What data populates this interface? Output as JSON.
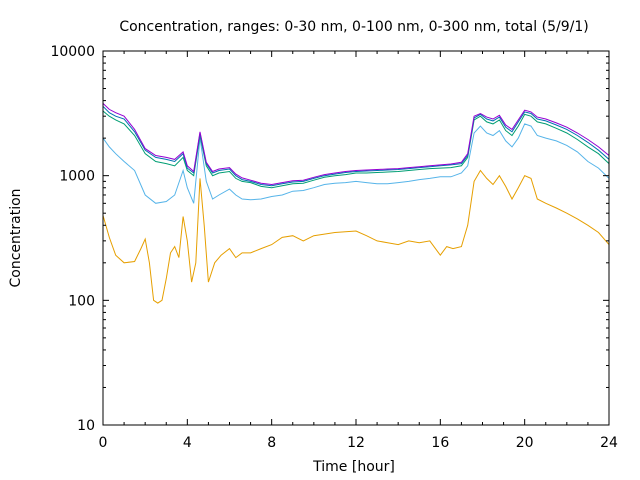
{
  "chart_data": {
    "type": "line",
    "title": "Concentration, ranges: 0-30 nm, 0-100 nm, 0-300 nm, total (5/9/1)",
    "xlabel": "Time [hour]",
    "ylabel": "Concentration",
    "xlim": [
      0,
      24
    ],
    "ylim": [
      10,
      10000
    ],
    "yscale": "log",
    "grid": false,
    "x_ticks": [
      0,
      4,
      8,
      12,
      16,
      20,
      24
    ],
    "y_ticks": [
      10,
      100,
      1000,
      10000
    ],
    "x_tick_labels": [
      "0",
      "4",
      "8",
      "12",
      "16",
      "20",
      "24"
    ],
    "y_tick_labels": [
      "10",
      "100",
      "1000",
      "10000"
    ],
    "series": [
      {
        "color": "#e69f00",
        "points": [
          [
            0,
            480
          ],
          [
            0.3,
            320
          ],
          [
            0.6,
            230
          ],
          [
            1.0,
            200
          ],
          [
            1.5,
            205
          ],
          [
            1.8,
            260
          ],
          [
            2.0,
            310
          ],
          [
            2.2,
            200
          ],
          [
            2.4,
            100
          ],
          [
            2.6,
            95
          ],
          [
            2.8,
            100
          ],
          [
            3.0,
            150
          ],
          [
            3.2,
            240
          ],
          [
            3.4,
            270
          ],
          [
            3.6,
            220
          ],
          [
            3.8,
            470
          ],
          [
            4.0,
            300
          ],
          [
            4.2,
            140
          ],
          [
            4.4,
            200
          ],
          [
            4.6,
            950
          ],
          [
            4.8,
            400
          ],
          [
            5.0,
            140
          ],
          [
            5.3,
            200
          ],
          [
            5.6,
            230
          ],
          [
            6.0,
            260
          ],
          [
            6.3,
            220
          ],
          [
            6.6,
            240
          ],
          [
            7.0,
            240
          ],
          [
            7.5,
            260
          ],
          [
            8.0,
            280
          ],
          [
            8.5,
            320
          ],
          [
            9.0,
            330
          ],
          [
            9.5,
            300
          ],
          [
            10.0,
            330
          ],
          [
            10.5,
            340
          ],
          [
            11.0,
            350
          ],
          [
            12.0,
            360
          ],
          [
            12.5,
            330
          ],
          [
            13.0,
            300
          ],
          [
            13.5,
            290
          ],
          [
            14.0,
            280
          ],
          [
            14.5,
            300
          ],
          [
            15.0,
            290
          ],
          [
            15.5,
            300
          ],
          [
            16.0,
            230
          ],
          [
            16.3,
            270
          ],
          [
            16.6,
            260
          ],
          [
            17.0,
            270
          ],
          [
            17.3,
            400
          ],
          [
            17.6,
            900
          ],
          [
            17.9,
            1100
          ],
          [
            18.2,
            950
          ],
          [
            18.5,
            850
          ],
          [
            18.8,
            1000
          ],
          [
            19.1,
            820
          ],
          [
            19.4,
            650
          ],
          [
            19.7,
            800
          ],
          [
            20.0,
            1000
          ],
          [
            20.3,
            950
          ],
          [
            20.6,
            650
          ],
          [
            21.0,
            600
          ],
          [
            21.5,
            550
          ],
          [
            22.0,
            500
          ],
          [
            22.5,
            450
          ],
          [
            23.0,
            400
          ],
          [
            23.5,
            350
          ],
          [
            24.0,
            280
          ]
        ]
      },
      {
        "color": "#56b4e9",
        "points": [
          [
            0,
            2000
          ],
          [
            0.3,
            1700
          ],
          [
            0.6,
            1500
          ],
          [
            1.0,
            1300
          ],
          [
            1.5,
            1100
          ],
          [
            2.0,
            700
          ],
          [
            2.5,
            600
          ],
          [
            3.0,
            620
          ],
          [
            3.4,
            700
          ],
          [
            3.8,
            1100
          ],
          [
            4.0,
            800
          ],
          [
            4.3,
            600
          ],
          [
            4.6,
            2000
          ],
          [
            4.9,
            900
          ],
          [
            5.2,
            650
          ],
          [
            5.5,
            700
          ],
          [
            6.0,
            780
          ],
          [
            6.3,
            700
          ],
          [
            6.6,
            650
          ],
          [
            7.0,
            640
          ],
          [
            7.5,
            650
          ],
          [
            8.0,
            680
          ],
          [
            8.5,
            700
          ],
          [
            9.0,
            750
          ],
          [
            9.5,
            760
          ],
          [
            10.0,
            800
          ],
          [
            10.5,
            850
          ],
          [
            11.0,
            870
          ],
          [
            11.5,
            880
          ],
          [
            12.0,
            900
          ],
          [
            12.5,
            880
          ],
          [
            13.0,
            860
          ],
          [
            13.5,
            860
          ],
          [
            14.0,
            880
          ],
          [
            14.5,
            900
          ],
          [
            15.0,
            930
          ],
          [
            15.5,
            950
          ],
          [
            16.0,
            980
          ],
          [
            16.5,
            980
          ],
          [
            17.0,
            1050
          ],
          [
            17.3,
            1200
          ],
          [
            17.6,
            2200
          ],
          [
            17.9,
            2500
          ],
          [
            18.2,
            2200
          ],
          [
            18.5,
            2100
          ],
          [
            18.8,
            2300
          ],
          [
            19.1,
            1900
          ],
          [
            19.4,
            1700
          ],
          [
            19.7,
            2000
          ],
          [
            20.0,
            2600
          ],
          [
            20.3,
            2500
          ],
          [
            20.6,
            2100
          ],
          [
            21.0,
            2000
          ],
          [
            21.5,
            1900
          ],
          [
            22.0,
            1750
          ],
          [
            22.5,
            1550
          ],
          [
            23.0,
            1300
          ],
          [
            23.5,
            1150
          ],
          [
            24.0,
            950
          ]
        ]
      },
      {
        "color": "#009e73",
        "points": [
          [
            0,
            3300
          ],
          [
            0.3,
            3000
          ],
          [
            0.6,
            2800
          ],
          [
            1.0,
            2600
          ],
          [
            1.5,
            2100
          ],
          [
            2.0,
            1500
          ],
          [
            2.5,
            1300
          ],
          [
            3.0,
            1250
          ],
          [
            3.4,
            1200
          ],
          [
            3.8,
            1400
          ],
          [
            4.0,
            1100
          ],
          [
            4.3,
            1000
          ],
          [
            4.6,
            2100
          ],
          [
            4.9,
            1200
          ],
          [
            5.2,
            1000
          ],
          [
            5.5,
            1050
          ],
          [
            6.0,
            1080
          ],
          [
            6.3,
            950
          ],
          [
            6.6,
            900
          ],
          [
            7.0,
            880
          ],
          [
            7.5,
            820
          ],
          [
            8.0,
            800
          ],
          [
            8.5,
            830
          ],
          [
            9.0,
            860
          ],
          [
            9.5,
            870
          ],
          [
            10.0,
            920
          ],
          [
            10.5,
            970
          ],
          [
            11.0,
            1000
          ],
          [
            11.5,
            1020
          ],
          [
            12.0,
            1050
          ],
          [
            12.5,
            1050
          ],
          [
            13.0,
            1060
          ],
          [
            13.5,
            1070
          ],
          [
            14.0,
            1080
          ],
          [
            14.5,
            1100
          ],
          [
            15.0,
            1120
          ],
          [
            15.5,
            1140
          ],
          [
            16.0,
            1150
          ],
          [
            16.5,
            1160
          ],
          [
            17.0,
            1200
          ],
          [
            17.3,
            1400
          ],
          [
            17.6,
            2800
          ],
          [
            17.9,
            3000
          ],
          [
            18.2,
            2700
          ],
          [
            18.5,
            2600
          ],
          [
            18.8,
            2800
          ],
          [
            19.1,
            2300
          ],
          [
            19.4,
            2100
          ],
          [
            19.7,
            2500
          ],
          [
            20.0,
            3100
          ],
          [
            20.3,
            3000
          ],
          [
            20.6,
            2700
          ],
          [
            21.0,
            2600
          ],
          [
            21.5,
            2400
          ],
          [
            22.0,
            2200
          ],
          [
            22.5,
            1950
          ],
          [
            23.0,
            1700
          ],
          [
            23.5,
            1500
          ],
          [
            24.0,
            1250
          ]
        ]
      },
      {
        "color": "#0072b2",
        "points": [
          [
            0,
            3600
          ],
          [
            0.3,
            3200
          ],
          [
            0.6,
            3000
          ],
          [
            1.0,
            2850
          ],
          [
            1.5,
            2250
          ],
          [
            2.0,
            1600
          ],
          [
            2.5,
            1400
          ],
          [
            3.0,
            1350
          ],
          [
            3.4,
            1300
          ],
          [
            3.8,
            1500
          ],
          [
            4.0,
            1150
          ],
          [
            4.3,
            1050
          ],
          [
            4.6,
            2200
          ],
          [
            4.9,
            1250
          ],
          [
            5.2,
            1050
          ],
          [
            5.5,
            1100
          ],
          [
            6.0,
            1130
          ],
          [
            6.3,
            1000
          ],
          [
            6.6,
            930
          ],
          [
            7.0,
            900
          ],
          [
            7.5,
            850
          ],
          [
            8.0,
            830
          ],
          [
            8.5,
            860
          ],
          [
            9.0,
            890
          ],
          [
            9.5,
            900
          ],
          [
            10.0,
            950
          ],
          [
            10.5,
            1000
          ],
          [
            11.0,
            1030
          ],
          [
            11.5,
            1060
          ],
          [
            12.0,
            1080
          ],
          [
            12.5,
            1090
          ],
          [
            13.0,
            1100
          ],
          [
            13.5,
            1110
          ],
          [
            14.0,
            1120
          ],
          [
            14.5,
            1140
          ],
          [
            15.0,
            1160
          ],
          [
            15.5,
            1180
          ],
          [
            16.0,
            1200
          ],
          [
            16.5,
            1220
          ],
          [
            17.0,
            1250
          ],
          [
            17.3,
            1450
          ],
          [
            17.6,
            2900
          ],
          [
            17.9,
            3100
          ],
          [
            18.2,
            2850
          ],
          [
            18.5,
            2750
          ],
          [
            18.8,
            2950
          ],
          [
            19.1,
            2450
          ],
          [
            19.4,
            2250
          ],
          [
            19.7,
            2700
          ],
          [
            20.0,
            3250
          ],
          [
            20.3,
            3150
          ],
          [
            20.6,
            2850
          ],
          [
            21.0,
            2750
          ],
          [
            21.5,
            2550
          ],
          [
            22.0,
            2350
          ],
          [
            22.5,
            2100
          ],
          [
            23.0,
            1850
          ],
          [
            23.5,
            1600
          ],
          [
            24.0,
            1350
          ]
        ]
      },
      {
        "color": "#9400d3",
        "points": [
          [
            0,
            3800
          ],
          [
            0.3,
            3400
          ],
          [
            0.6,
            3200
          ],
          [
            1.0,
            3000
          ],
          [
            1.5,
            2350
          ],
          [
            2.0,
            1650
          ],
          [
            2.5,
            1450
          ],
          [
            3.0,
            1400
          ],
          [
            3.4,
            1350
          ],
          [
            3.8,
            1550
          ],
          [
            4.0,
            1200
          ],
          [
            4.3,
            1080
          ],
          [
            4.6,
            2250
          ],
          [
            4.9,
            1280
          ],
          [
            5.2,
            1080
          ],
          [
            5.5,
            1130
          ],
          [
            6.0,
            1160
          ],
          [
            6.3,
            1030
          ],
          [
            6.6,
            960
          ],
          [
            7.0,
            920
          ],
          [
            7.5,
            870
          ],
          [
            8.0,
            850
          ],
          [
            8.5,
            880
          ],
          [
            9.0,
            910
          ],
          [
            9.5,
            920
          ],
          [
            10.0,
            970
          ],
          [
            10.5,
            1020
          ],
          [
            11.0,
            1050
          ],
          [
            11.5,
            1080
          ],
          [
            12.0,
            1100
          ],
          [
            12.5,
            1110
          ],
          [
            13.0,
            1120
          ],
          [
            13.5,
            1130
          ],
          [
            14.0,
            1140
          ],
          [
            14.5,
            1160
          ],
          [
            15.0,
            1180
          ],
          [
            15.5,
            1200
          ],
          [
            16.0,
            1220
          ],
          [
            16.5,
            1240
          ],
          [
            17.0,
            1280
          ],
          [
            17.3,
            1500
          ],
          [
            17.6,
            3000
          ],
          [
            17.9,
            3150
          ],
          [
            18.2,
            2950
          ],
          [
            18.5,
            2850
          ],
          [
            18.8,
            3050
          ],
          [
            19.1,
            2550
          ],
          [
            19.4,
            2350
          ],
          [
            19.7,
            2800
          ],
          [
            20.0,
            3350
          ],
          [
            20.3,
            3250
          ],
          [
            20.6,
            2950
          ],
          [
            21.0,
            2850
          ],
          [
            21.5,
            2650
          ],
          [
            22.0,
            2450
          ],
          [
            22.5,
            2200
          ],
          [
            23.0,
            1950
          ],
          [
            23.5,
            1700
          ],
          [
            24.0,
            1450
          ]
        ]
      }
    ]
  }
}
